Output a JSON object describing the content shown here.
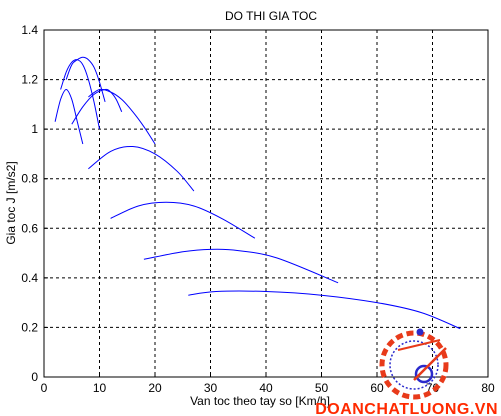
{
  "chart_data": {
    "type": "line",
    "title": "DO THI GIA TOC",
    "xlabel": "Van toc theo tay so  [Km/h]",
    "ylabel": "Gia toc J [m/s2]",
    "xlim": [
      0,
      80
    ],
    "ylim": [
      0,
      1.4
    ],
    "xticks": [
      0,
      10,
      20,
      30,
      40,
      50,
      60,
      70,
      80
    ],
    "yticks": [
      0,
      0.2,
      0.4,
      0.6,
      0.8,
      1,
      1.2,
      1.4
    ],
    "xtick_labels": [
      "0",
      "10",
      "20",
      "30",
      "40",
      "50",
      "60",
      "70",
      "80"
    ],
    "ytick_labels": [
      "0",
      "0.2",
      "0.4",
      "0.6",
      "0.8",
      "1",
      "1.2",
      "1.4"
    ],
    "grid": true,
    "line_color": "#0000ff",
    "series": [
      {
        "x": [
          2,
          3,
          4,
          5,
          6,
          7
        ],
        "values": [
          1.03,
          1.12,
          1.16,
          1.12,
          1.03,
          0.94
        ]
      },
      {
        "x": [
          3,
          4,
          5,
          6,
          7,
          8,
          9,
          10
        ],
        "values": [
          1.16,
          1.23,
          1.27,
          1.28,
          1.26,
          1.2,
          1.11,
          1.0
        ]
      },
      {
        "x": [
          4,
          5,
          6,
          7,
          8,
          9,
          10,
          11
        ],
        "values": [
          1.2,
          1.26,
          1.28,
          1.29,
          1.28,
          1.25,
          1.19,
          1.11
        ]
      },
      {
        "x": [
          5,
          7,
          9,
          11,
          12,
          13,
          14
        ],
        "values": [
          1.02,
          1.09,
          1.14,
          1.16,
          1.15,
          1.12,
          1.07
        ]
      },
      {
        "x": [
          8,
          10,
          12,
          14,
          16,
          18,
          20
        ],
        "values": [
          1.13,
          1.16,
          1.15,
          1.12,
          1.07,
          1.01,
          0.94
        ]
      },
      {
        "x": [
          8,
          12,
          16,
          20,
          24,
          27
        ],
        "values": [
          0.84,
          0.91,
          0.93,
          0.9,
          0.83,
          0.75
        ]
      },
      {
        "x": [
          12,
          17,
          22,
          27,
          32,
          38
        ],
        "values": [
          0.64,
          0.69,
          0.705,
          0.69,
          0.64,
          0.56
        ]
      },
      {
        "x": [
          18,
          25,
          30,
          35,
          42,
          53
        ],
        "values": [
          0.475,
          0.505,
          0.515,
          0.51,
          0.48,
          0.38
        ]
      },
      {
        "x": [
          26,
          31,
          40,
          50,
          60,
          68,
          75
        ],
        "values": [
          0.33,
          0.345,
          0.345,
          0.33,
          0.3,
          0.26,
          0.195
        ]
      }
    ]
  },
  "watermark": {
    "text": "DOANCHATLUONG.VN",
    "colors": {
      "red": "#e83a1a",
      "blue": "#2a2acc"
    }
  }
}
